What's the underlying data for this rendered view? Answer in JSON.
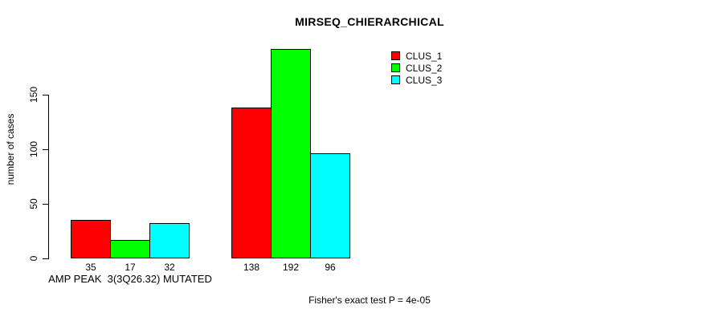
{
  "page": {
    "background_color": "#ffffff",
    "text_color": "#000000"
  },
  "chart_data": {
    "type": "bar",
    "title": "MIRSEQ_CHIERARCHICAL",
    "ylabel": "number of cases",
    "xlabel": "AMP PEAK  3(3Q26.32) MUTATED",
    "annotation": "Fisher's exact test P = 4e-05",
    "ylim": [
      0,
      150
    ],
    "yticks": [
      0,
      50,
      100,
      150
    ],
    "grid": false,
    "legend_position": "top-right",
    "bar_outline_color": "#000000",
    "series": [
      {
        "name": "CLUS_1",
        "color": "#ff0000"
      },
      {
        "name": "CLUS_2",
        "color": "#00ff00"
      },
      {
        "name": "CLUS_3",
        "color": "#00ffff"
      }
    ],
    "groups": [
      {
        "label": "AMP PEAK  3(3Q26.32) MUTATED",
        "values": [
          35,
          17,
          32
        ]
      },
      {
        "label": "",
        "values": [
          138,
          192,
          96
        ]
      }
    ]
  }
}
